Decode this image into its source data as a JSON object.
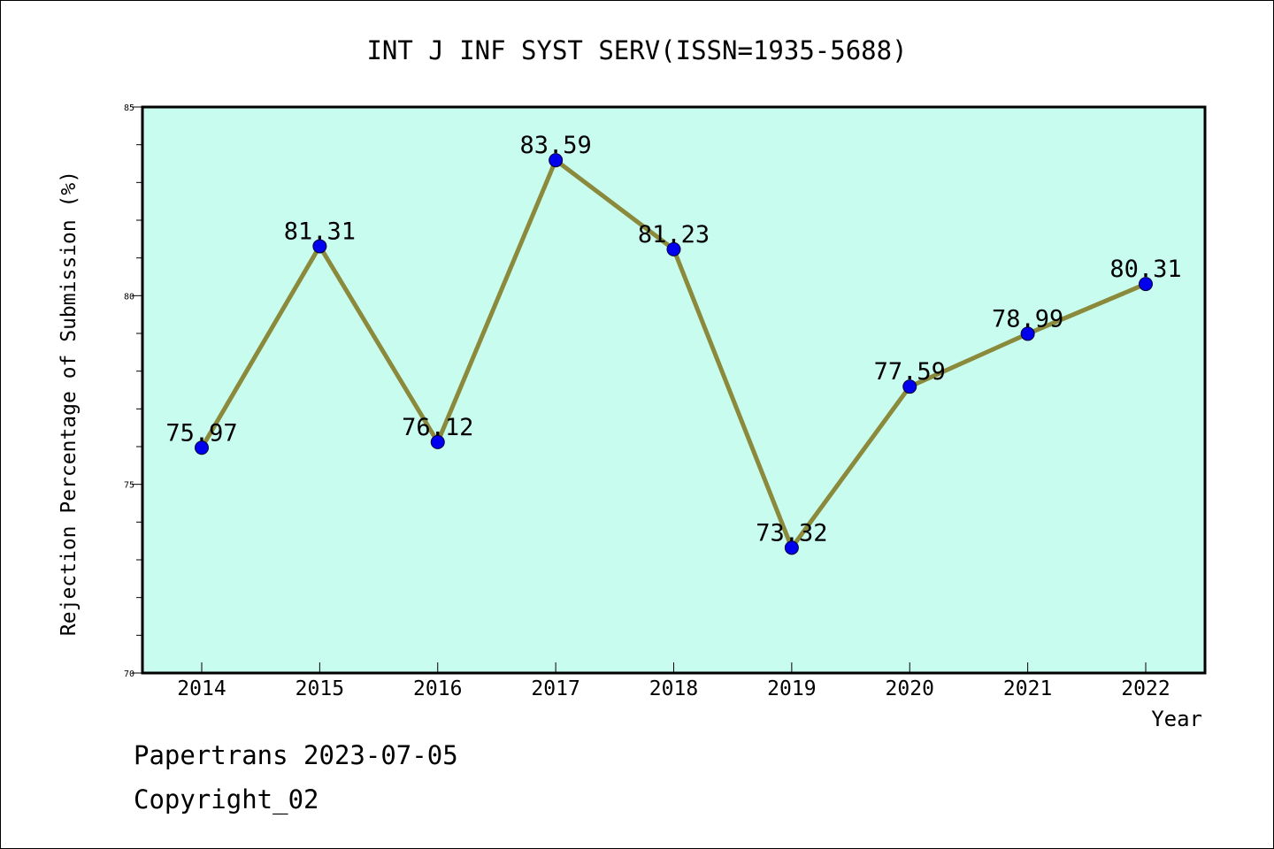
{
  "chart_data": {
    "type": "line",
    "title": "INT J INF SYST SERV(ISSN=1935-5688)",
    "xlabel": "Year",
    "ylabel": "Rejection Percentage of Submission (%)",
    "categories": [
      "2014",
      "2015",
      "2016",
      "2017",
      "2018",
      "2019",
      "2020",
      "2021",
      "2022"
    ],
    "values": [
      75.97,
      81.31,
      76.12,
      83.59,
      81.23,
      73.32,
      77.59,
      78.99,
      80.31
    ],
    "data_labels": [
      "75.97",
      "81.31",
      "76.12",
      "83.59",
      "81.23",
      "73.32",
      "77.59",
      "78.99",
      "80.31"
    ],
    "ylim": [
      70,
      85
    ],
    "yticks": [
      70,
      75,
      80,
      85
    ],
    "grid": false,
    "colors": {
      "plot_background": "#c8fcee",
      "line": "#8b8a3c",
      "marker": "#0000ee"
    }
  },
  "footer": {
    "line1": "Papertrans 2023-07-05",
    "line2": "Copyright_02"
  }
}
